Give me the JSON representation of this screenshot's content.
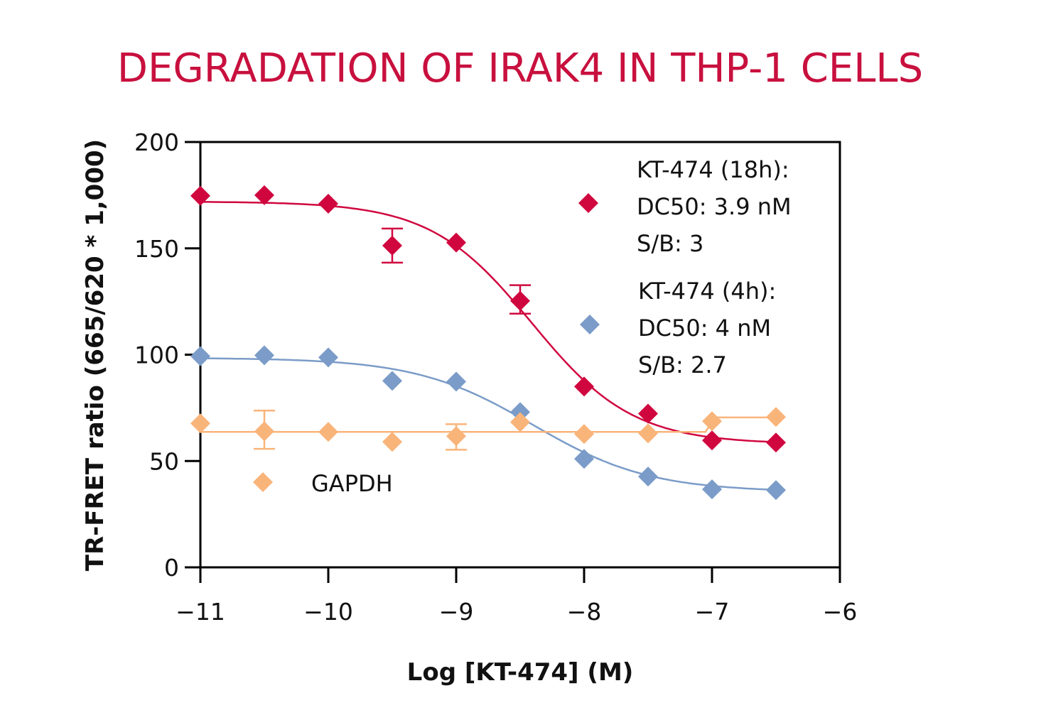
{
  "chart_data": {
    "type": "scatter",
    "title": "DEGRADATION OF IRAK4 IN THP-1 CELLS",
    "xlabel": "Log [KT-474] (M)",
    "ylabel": "TR-FRET ratio (665/620 * 1,000)",
    "xlim": [
      -11,
      -6
    ],
    "ylim": [
      0,
      200
    ],
    "xticks": [
      "-11",
      "-10",
      "-9",
      "-8",
      "-7",
      "-6"
    ],
    "yticks": [
      "0",
      "50",
      "100",
      "150",
      "200"
    ],
    "grid": false,
    "series": [
      {
        "name": "KT-474 (18h)",
        "legend": [
          "KT-474 (18h):",
          "DC50: 3.9 nM",
          "S/B: 3"
        ],
        "color": "#d0073f",
        "x": [
          -11,
          -10.5,
          -10,
          -9.5,
          -9,
          -8.5,
          -8,
          -7.5,
          -7,
          -6.5
        ],
        "y": [
          174.7,
          175,
          171,
          151.3,
          152.7,
          125.3,
          85,
          72.3,
          59.7,
          58.7
        ],
        "errors": [
          null,
          null,
          null,
          [
            143.3,
            159.3
          ],
          null,
          [
            119.3,
            132.7
          ],
          null,
          null,
          null,
          null
        ],
        "fit": {
          "top": 172,
          "bottom": 58,
          "logDC50": -8.41,
          "hill": 1.1
        }
      },
      {
        "name": "KT-474 (4h)",
        "legend": [
          "KT-474 (4h):",
          "DC50: 4 nM",
          "S/B: 2.7"
        ],
        "color": "#7b9cc8",
        "x": [
          -11,
          -10.5,
          -10,
          -9.5,
          -9,
          -8.5,
          -8,
          -7.5,
          -7,
          -6.5
        ],
        "y": [
          99.3,
          99.7,
          98.7,
          87.7,
          87.3,
          73,
          51,
          42.7,
          36.7,
          36.3
        ],
        "errors": [
          null,
          null,
          null,
          null,
          null,
          null,
          null,
          null,
          null,
          null
        ],
        "fit": {
          "top": 98.5,
          "bottom": 35.5,
          "logDC50": -8.4,
          "hill": 0.95
        }
      },
      {
        "name": "GAPDH",
        "legend": [
          "GAPDH"
        ],
        "color": "#f9b47a",
        "x": [
          -11,
          -10.5,
          -10,
          -9.5,
          -9,
          -8.5,
          -8,
          -7.5,
          -7,
          -6.5
        ],
        "y": [
          67.7,
          64,
          63.7,
          59,
          61.7,
          68.3,
          62.7,
          63,
          68.7,
          70.7
        ],
        "errors": [
          null,
          [
            55.7,
            73.7
          ],
          null,
          null,
          [
            55.3,
            67.3
          ],
          null,
          null,
          null,
          null,
          null
        ],
        "fit_line": {
          "x": [
            -11,
            -7.05,
            -6.98,
            -6.5
          ],
          "y": [
            63.7,
            63.7,
            70.5,
            70.5
          ]
        }
      }
    ]
  }
}
